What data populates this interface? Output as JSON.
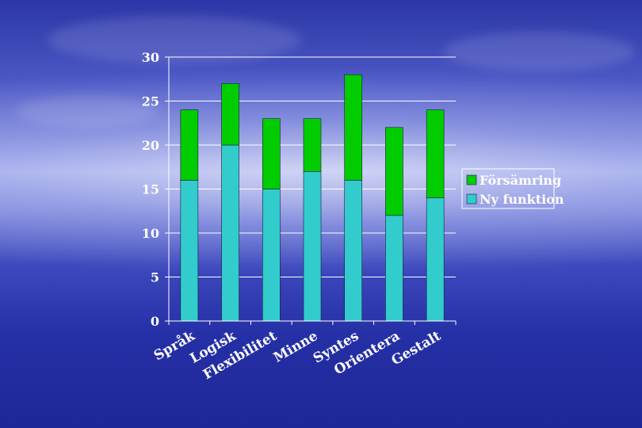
{
  "chart_data": {
    "type": "bar",
    "stacked": true,
    "categories": [
      "Språk",
      "Logisk",
      "Flexibilitet",
      "Minne",
      "Syntes",
      "Orientera",
      "Gestalt"
    ],
    "series": [
      {
        "name": "Ny funktion",
        "color": "#33cccc",
        "values": [
          16,
          20,
          15,
          17,
          16,
          12,
          14
        ]
      },
      {
        "name": "Försämring",
        "color": "#00cc00",
        "values": [
          8,
          7,
          8,
          6,
          12,
          10,
          10
        ]
      }
    ],
    "yticks": [
      "0",
      "5",
      "10",
      "15",
      "20",
      "25",
      "30"
    ],
    "ylim": [
      0,
      30
    ],
    "grid": true,
    "legend_position": "right",
    "legend_order": [
      "Försämring",
      "Ny funktion"
    ]
  }
}
